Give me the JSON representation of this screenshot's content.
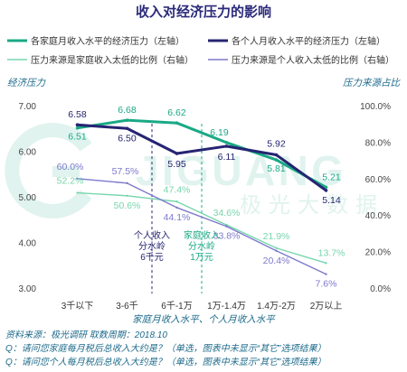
{
  "chart_data": {
    "type": "line",
    "title": "收入对经济压力的影响",
    "ylabel_left": "经济压力",
    "ylabel_right": "压力来源占比",
    "xlabel": "家庭月收入水平、个人月收入水平",
    "categories": [
      "3千以下",
      "3-6千",
      "6千-1万",
      "1万-1.4万",
      "1.4万-2万",
      "2万以上"
    ],
    "ylim_left": [
      3.0,
      7.0
    ],
    "ylim_right": [
      0,
      100
    ],
    "yticks_left": [
      "3.00",
      "4.00",
      "5.00",
      "6.00",
      "7.00"
    ],
    "yticks_right": [
      "0.0%",
      "20.0%",
      "40.0%",
      "60.0%",
      "80.0%",
      "100.0%"
    ],
    "legend_position": "top",
    "series": [
      {
        "name": "各家庭月收入水平的经济压力（左轴）",
        "axis": "left",
        "style": "solid",
        "color": "#1aa985",
        "values": [
          6.51,
          6.68,
          6.62,
          6.19,
          5.81,
          5.21
        ],
        "labels": [
          "6.51",
          "6.68",
          "6.62",
          "6.19",
          "5.81",
          "5.21"
        ]
      },
      {
        "name": "各个人月收入水平的经济压力（左轴）",
        "axis": "left",
        "style": "solid",
        "color": "#262472",
        "values": [
          6.58,
          6.5,
          5.95,
          6.11,
          5.92,
          5.14
        ],
        "labels": [
          "6.58",
          "6.50",
          "5.95",
          "6.11",
          "5.92",
          "5.14"
        ]
      },
      {
        "name": "压力来源是家庭收入太低的比例（右轴）",
        "axis": "right",
        "style": "thin",
        "color": "#76d6ad",
        "values": [
          52.2,
          50.6,
          47.4,
          34.6,
          21.9,
          13.7
        ],
        "labels": [
          "52.2%",
          "50.6%",
          "47.4%",
          "34.6%",
          "21.9%",
          "13.7%"
        ]
      },
      {
        "name": "压力来源是个人收入太低的比例（右轴）",
        "axis": "right",
        "style": "thin",
        "color": "#7d79cc",
        "values": [
          60.0,
          57.5,
          44.1,
          33.8,
          20.4,
          7.6
        ],
        "labels": [
          "60.0%",
          "57.5%",
          "44.1%",
          "33.8%",
          "20.4%",
          "7.6%"
        ]
      }
    ],
    "annotations": [
      {
        "lines": [
          "个人收入",
          "分水岭",
          "6千元"
        ],
        "color": "#262472"
      },
      {
        "lines": [
          "家庭收入",
          "分水岭",
          "1万元"
        ],
        "color": "#1aa985"
      }
    ],
    "watermark": "JIGUANG 极光大数据"
  },
  "footer": {
    "source": "资料来源：极光调研        取数周期：2018.10",
    "q1": "Q：请问您家庭每月税后总收入大约是？（单选，图表中未显示“其它”选项结果）",
    "q2": "Q：请问您个人每月税后总收入大约是？（单选，图表中未显示“其它”选项结果）"
  }
}
